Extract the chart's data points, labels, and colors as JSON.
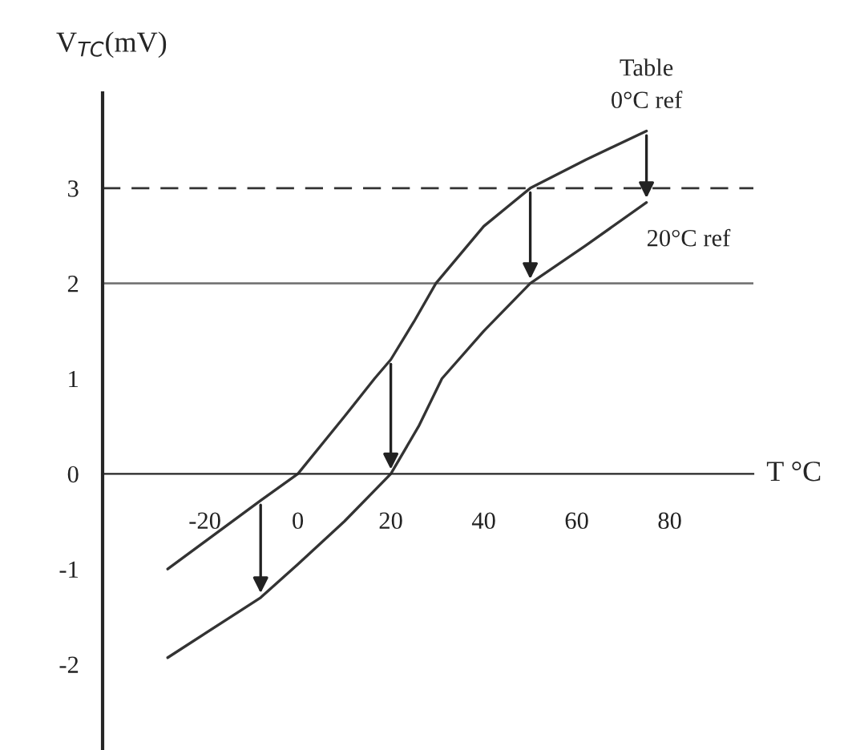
{
  "chart_data": {
    "type": "line",
    "xlabel": "T °C",
    "ylabel": "V$_{TC}$(mV)",
    "series": [
      {
        "name": "Table\n0°C ref",
        "color": "#333333",
        "x": [
          -28,
          -8,
          0,
          10,
          16.5,
          20,
          25,
          29.7,
          40,
          50,
          62,
          75
        ],
        "values": [
          -1.0,
          -0.28,
          0,
          0.6,
          1.0,
          1.2,
          1.6,
          2.0,
          2.6,
          3.0,
          3.3,
          3.6
        ]
      },
      {
        "name": "20°C ref",
        "color": "#333333",
        "x": [
          -28,
          -8,
          0,
          10,
          20,
          26,
          31,
          40,
          50,
          62,
          75
        ],
        "values": [
          -1.93,
          -1.3,
          -0.95,
          -0.5,
          0,
          0.5,
          1.0,
          1.5,
          2.0,
          2.4,
          2.85
        ]
      }
    ],
    "xlim": [
      -42,
      98
    ],
    "ylim": [
      -2.9,
      4.0
    ],
    "xticks": [
      -20,
      0,
      20,
      40,
      60,
      80
    ],
    "yticks": [
      -2,
      -1,
      0,
      1,
      2,
      3
    ],
    "ref_lines": [
      {
        "axis": "y",
        "value": 3,
        "line_style": "dashed",
        "color": "#333333"
      },
      {
        "axis": "y",
        "value": 2,
        "line_style": "solid",
        "color": "#777777"
      }
    ],
    "grid": false,
    "legend": false,
    "marker": "none",
    "line_style": "solid"
  }
}
